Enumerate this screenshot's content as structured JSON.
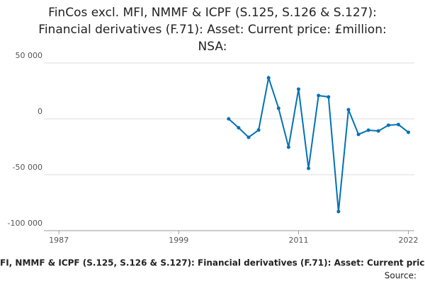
{
  "chart_data": {
    "type": "line",
    "title": [
      "FinCos excl. MFI, NMMF & ICPF (S.125, S.126 & S.127):",
      "Financial derivatives (F.71): Asset: Current price: £million:",
      "NSA:"
    ],
    "x": [
      2004,
      2005,
      2006,
      2007,
      2008,
      2009,
      2010,
      2011,
      2012,
      2013,
      2014,
      2015,
      2016,
      2017,
      2018,
      2019,
      2020,
      2021,
      2022
    ],
    "series": [
      {
        "color": "#0072b5",
        "values": [
          0,
          -8000,
          -16500,
          -10000,
          36700,
          9500,
          -25300,
          26600,
          -44300,
          20900,
          19600,
          -82900,
          8200,
          -13900,
          -10100,
          -10800,
          -5700,
          -5100,
          -12000
        ]
      }
    ],
    "xlim": [
      1985.5,
      2022.6
    ],
    "xticks": [
      1987,
      1999,
      2011,
      2022
    ],
    "ylim": [
      -100000,
      50000
    ],
    "yticks": [
      {
        "value": -100000,
        "label": "-100 000"
      },
      {
        "value": -50000,
        "label": "-50 000"
      },
      0,
      {
        "value": 50000,
        "label": "50 000"
      }
    ],
    "grid": true,
    "caption": "FI, NMMF & ICPF (S.125, S.126 & S.127): Financial derivatives (F.71): Asset: Current pric",
    "source": "Source:"
  }
}
